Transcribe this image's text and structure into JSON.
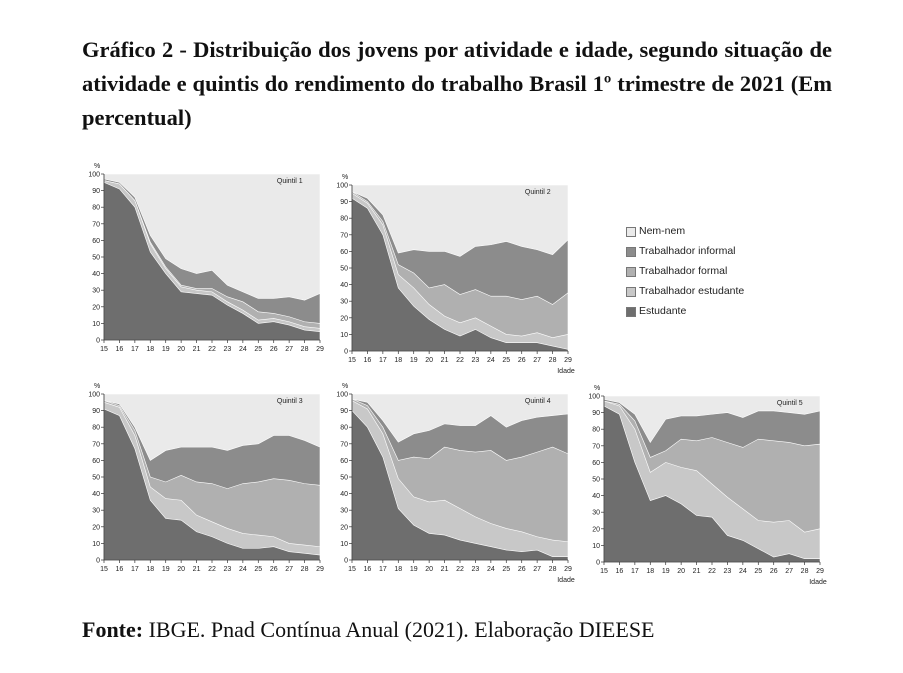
{
  "title": "Gráfico 2 - Distribuição dos jovens por atividade e idade, segundo situação de atividade e quintis do rendimento do trabalho Brasil 1º trimestre de 2021 (Em percentual)",
  "source": {
    "label": "Fonte:",
    "text": " IBGE. Pnad Contínua Anual (2021). Elaboração DIEESE"
  },
  "legend": [
    {
      "name": "Nem-nem",
      "color": "#eaeaea"
    },
    {
      "name": "Trabalhador informal",
      "color": "#8c8c8c"
    },
    {
      "name": "Trabalhador formal",
      "color": "#b0b0b0"
    },
    {
      "name": "Trabalhador estudante",
      "color": "#c8c8c8"
    },
    {
      "name": "Estudante",
      "color": "#6e6e6e"
    }
  ],
  "axis": {
    "y_unit": "%",
    "x_label": "Idade",
    "y_ticks": [
      0,
      10,
      20,
      30,
      40,
      50,
      60,
      70,
      80,
      90,
      100
    ]
  },
  "chart_data": [
    {
      "type": "area",
      "title": "Quintil 1",
      "x": [
        15,
        16,
        17,
        18,
        19,
        20,
        21,
        22,
        23,
        24,
        25,
        26,
        27,
        28,
        29
      ],
      "ylim": [
        0,
        100
      ],
      "cumulative": {
        "Estudante": [
          95,
          91,
          80,
          53,
          40,
          29,
          28,
          27,
          21,
          16,
          10,
          11,
          9,
          6,
          5
        ],
        "Trabalhador estudante": [
          96,
          94,
          84,
          58,
          43,
          32,
          30,
          29,
          23,
          18,
          12,
          13,
          11,
          8,
          7
        ],
        "Trabalhador formal": [
          96,
          94,
          84,
          59,
          44,
          33,
          31,
          31,
          26,
          23,
          17,
          16,
          14,
          11,
          10
        ],
        "Trabalhador informal": [
          97,
          95,
          86,
          63,
          49,
          43,
          40,
          42,
          33,
          29,
          25,
          25,
          26,
          24,
          28
        ],
        "Nem-nem": [
          100,
          100,
          100,
          100,
          100,
          100,
          100,
          100,
          100,
          100,
          100,
          100,
          100,
          100,
          100
        ]
      }
    },
    {
      "type": "area",
      "title": "Quintil 2",
      "x": [
        15,
        16,
        17,
        18,
        19,
        20,
        21,
        22,
        23,
        24,
        25,
        26,
        27,
        28,
        29
      ],
      "ylim": [
        0,
        100
      ],
      "cumulative": {
        "Estudante": [
          92,
          86,
          70,
          38,
          27,
          19,
          13,
          9,
          13,
          8,
          5,
          5,
          5,
          3,
          1
        ],
        "Trabalhador estudante": [
          95,
          89,
          76,
          46,
          38,
          28,
          21,
          17,
          20,
          15,
          10,
          9,
          11,
          8,
          10
        ],
        "Trabalhador formal": [
          96,
          90,
          78,
          52,
          47,
          38,
          40,
          34,
          37,
          33,
          33,
          31,
          33,
          28,
          35
        ],
        "Trabalhador informal": [
          96,
          92,
          82,
          59,
          61,
          60,
          60,
          57,
          63,
          64,
          66,
          63,
          61,
          58,
          67
        ],
        "Nem-nem": [
          100,
          100,
          100,
          100,
          100,
          100,
          100,
          100,
          100,
          100,
          100,
          100,
          100,
          100,
          100
        ]
      }
    },
    {
      "type": "area",
      "title": "Quintil 3",
      "x": [
        15,
        16,
        17,
        18,
        19,
        20,
        21,
        22,
        23,
        24,
        25,
        26,
        27,
        28,
        29
      ],
      "ylim": [
        0,
        100
      ],
      "cumulative": {
        "Estudante": [
          91,
          87,
          67,
          36,
          25,
          24,
          17,
          14,
          10,
          7,
          7,
          8,
          5,
          4,
          3
        ],
        "Trabalhador estudante": [
          95,
          92,
          75,
          44,
          37,
          36,
          27,
          23,
          19,
          16,
          15,
          14,
          10,
          9,
          8
        ],
        "Trabalhador formal": [
          96,
          93,
          78,
          50,
          47,
          51,
          47,
          46,
          43,
          46,
          47,
          49,
          48,
          46,
          45
        ],
        "Trabalhador informal": [
          96,
          94,
          80,
          60,
          66,
          68,
          68,
          68,
          66,
          69,
          70,
          75,
          75,
          72,
          68
        ],
        "Nem-nem": [
          100,
          100,
          100,
          100,
          100,
          100,
          100,
          100,
          100,
          100,
          100,
          100,
          100,
          100,
          100
        ]
      }
    },
    {
      "type": "area",
      "title": "Quintil 4",
      "x": [
        15,
        16,
        17,
        18,
        19,
        20,
        21,
        22,
        23,
        24,
        25,
        26,
        27,
        28,
        29
      ],
      "ylim": [
        0,
        100
      ],
      "cumulative": {
        "Estudante": [
          90,
          80,
          62,
          31,
          21,
          16,
          15,
          12,
          10,
          8,
          6,
          5,
          6,
          2,
          2
        ],
        "Trabalhador estudante": [
          96,
          91,
          76,
          49,
          38,
          35,
          36,
          31,
          26,
          22,
          19,
          17,
          14,
          12,
          11
        ],
        "Trabalhador formal": [
          97,
          93,
          80,
          60,
          62,
          61,
          68,
          66,
          65,
          66,
          60,
          62,
          65,
          68,
          64
        ],
        "Trabalhador informal": [
          97,
          95,
          84,
          71,
          76,
          78,
          82,
          81,
          81,
          87,
          80,
          84,
          86,
          87,
          88
        ],
        "Nem-nem": [
          100,
          100,
          100,
          100,
          100,
          100,
          100,
          100,
          100,
          100,
          100,
          100,
          100,
          100,
          100
        ]
      }
    },
    {
      "type": "area",
      "title": "Quintil 5",
      "x": [
        15,
        16,
        17,
        18,
        19,
        20,
        21,
        22,
        23,
        24,
        25,
        26,
        27,
        28,
        29
      ],
      "ylim": [
        0,
        100
      ],
      "cumulative": {
        "Estudante": [
          94,
          89,
          60,
          37,
          40,
          35,
          28,
          27,
          16,
          13,
          8,
          3,
          5,
          2,
          2
        ],
        "Trabalhador estudante": [
          97,
          94,
          80,
          54,
          60,
          57,
          55,
          47,
          39,
          32,
          25,
          24,
          25,
          18,
          20
        ],
        "Trabalhador formal": [
          97,
          95,
          85,
          63,
          67,
          74,
          73,
          75,
          72,
          69,
          74,
          73,
          72,
          70,
          71
        ],
        "Trabalhador informal": [
          98,
          96,
          89,
          72,
          86,
          88,
          88,
          89,
          90,
          87,
          91,
          91,
          90,
          89,
          91
        ],
        "Nem-nem": [
          100,
          100,
          100,
          100,
          100,
          100,
          100,
          100,
          100,
          100,
          100,
          100,
          100,
          100,
          100
        ]
      }
    }
  ]
}
